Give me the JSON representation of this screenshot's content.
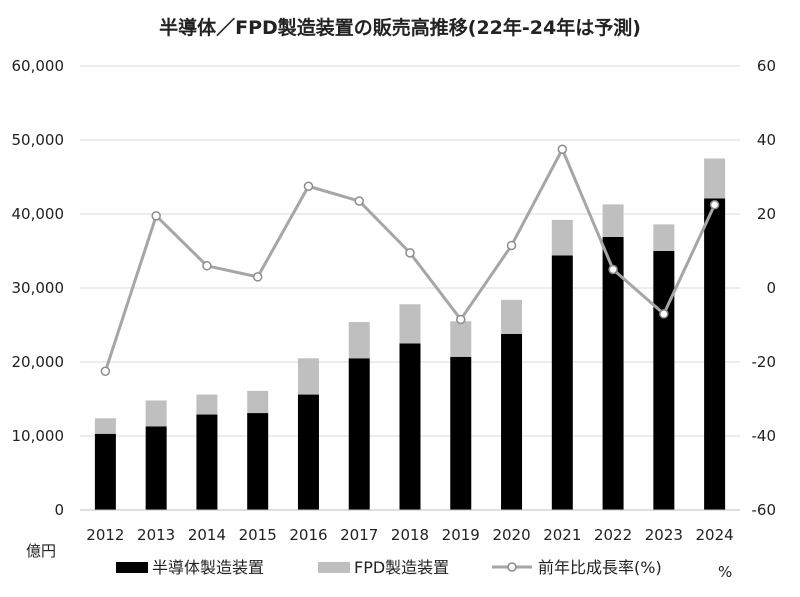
{
  "chart_data": {
    "type": "bar",
    "title": "半導体／FPD製造装置の販売高推移(22年-24年は予測)",
    "categories": [
      "2012",
      "2013",
      "2014",
      "2015",
      "2016",
      "2017",
      "2018",
      "2019",
      "2020",
      "2021",
      "2022",
      "2023",
      "2024"
    ],
    "series": [
      {
        "name": "半導体製造装置",
        "type": "bar",
        "stack": "a",
        "color": "#000000",
        "axis": "left",
        "values": [
          10300,
          11300,
          12900,
          13100,
          15600,
          20500,
          22500,
          20700,
          23800,
          34400,
          36900,
          35000,
          42100
        ]
      },
      {
        "name": "FPD製造装置",
        "type": "bar",
        "stack": "a",
        "color": "#bfbfbf",
        "axis": "left",
        "values": [
          2100,
          3500,
          2700,
          3000,
          4900,
          4900,
          5300,
          4800,
          4600,
          4800,
          4400,
          3600,
          5400
        ]
      },
      {
        "name": "前年比成長率(%)",
        "type": "line",
        "color": "#a6a6a6",
        "axis": "right",
        "values": [
          -22.5,
          19.5,
          6,
          3,
          27.5,
          23.5,
          9.5,
          -8.5,
          11.5,
          37.5,
          5,
          -7,
          22.5
        ]
      }
    ],
    "ylim_left": [
      0,
      60000
    ],
    "ylim_right": [
      -60,
      60
    ],
    "yticks_left": [
      "0",
      "10,000",
      "20,000",
      "30,000",
      "40,000",
      "50,000",
      "60,000"
    ],
    "yticks_right": [
      "-60",
      "-40",
      "-20",
      "0",
      "20",
      "40",
      "60"
    ],
    "ylabel_left_unit": "億円",
    "ylabel_right_unit": "%",
    "grid": true,
    "legend_position": "bottom"
  }
}
